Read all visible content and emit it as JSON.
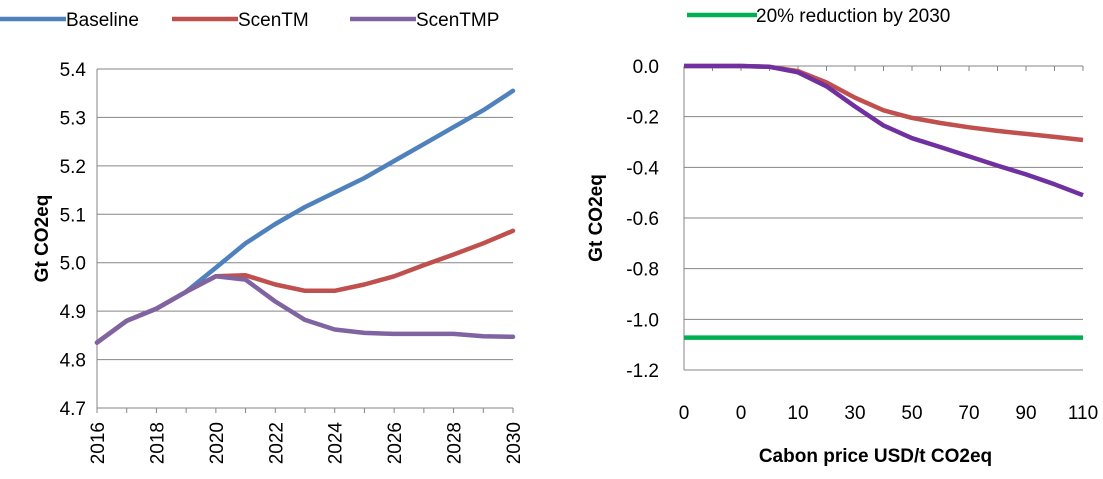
{
  "chart_data": [
    {
      "type": "line",
      "title": "",
      "xlabel": "",
      "ylabel": "Gt CO2eq",
      "ylim": [
        4.7,
        5.4
      ],
      "yticks": [
        "4.7",
        "4.8",
        "4.9",
        "5.0",
        "5.1",
        "5.2",
        "5.3",
        "5.4"
      ],
      "xticks": [
        "2016",
        "2018",
        "2020",
        "2022",
        "2024",
        "2026",
        "2028",
        "2030"
      ],
      "x": [
        2016,
        2017,
        2018,
        2019,
        2020,
        2021,
        2022,
        2023,
        2024,
        2025,
        2026,
        2027,
        2028,
        2029,
        2030
      ],
      "grid": "horizontal",
      "legend": "top",
      "series": [
        {
          "name": "Baseline",
          "color": "#4f81bd",
          "values": [
            4.835,
            4.88,
            4.905,
            4.94,
            4.99,
            5.04,
            5.08,
            5.115,
            5.145,
            5.175,
            5.21,
            5.245,
            5.28,
            5.315,
            5.355
          ]
        },
        {
          "name": "ScenTM",
          "color": "#c0504d",
          "values": [
            4.835,
            4.88,
            4.905,
            4.94,
            4.972,
            4.974,
            4.955,
            4.942,
            4.942,
            4.955,
            4.972,
            4.995,
            5.017,
            5.04,
            5.066
          ]
        },
        {
          "name": "ScenTMP",
          "color": "#8064a2",
          "values": [
            4.835,
            4.88,
            4.905,
            4.94,
            4.972,
            4.965,
            4.92,
            4.882,
            4.862,
            4.855,
            4.853,
            4.853,
            4.853,
            4.848,
            4.847
          ]
        }
      ]
    },
    {
      "type": "line",
      "title": "",
      "xlabel": "Cabon price USD/t CO2eq",
      "ylabel": "Gt CO2eq",
      "ylim": [
        -1.2,
        0.0
      ],
      "yticks": [
        "-1.2",
        "-1.0",
        "-0.8",
        "-0.6",
        "-0.4",
        "-0.2",
        "0.0"
      ],
      "xticks": [
        "0",
        "0",
        "10",
        "30",
        "50",
        "70",
        "90",
        "110"
      ],
      "x": [
        0,
        0.5,
        1,
        5,
        10,
        20,
        30,
        40,
        50,
        60,
        70,
        80,
        90,
        100,
        110
      ],
      "grid": "horizontal",
      "legend": "top",
      "series": [
        {
          "name": "",
          "color": "#c0504d",
          "values": [
            0.0,
            0.0,
            0.0,
            -0.003,
            -0.02,
            -0.065,
            -0.125,
            -0.175,
            -0.205,
            -0.225,
            -0.242,
            -0.256,
            -0.268,
            -0.28,
            -0.292
          ]
        },
        {
          "name": "",
          "color": "#7030a0",
          "values": [
            0.0,
            0.0,
            0.0,
            -0.003,
            -0.025,
            -0.08,
            -0.16,
            -0.235,
            -0.285,
            -0.32,
            -0.357,
            -0.393,
            -0.428,
            -0.467,
            -0.51
          ]
        },
        {
          "name": "20% reduction by 2030",
          "color": "#00b050",
          "values": [
            -1.072,
            -1.072,
            -1.072,
            -1.072,
            -1.072,
            -1.072,
            -1.072,
            -1.072,
            -1.072,
            -1.072,
            -1.072,
            -1.072,
            -1.072,
            -1.072,
            -1.072
          ]
        }
      ]
    }
  ]
}
